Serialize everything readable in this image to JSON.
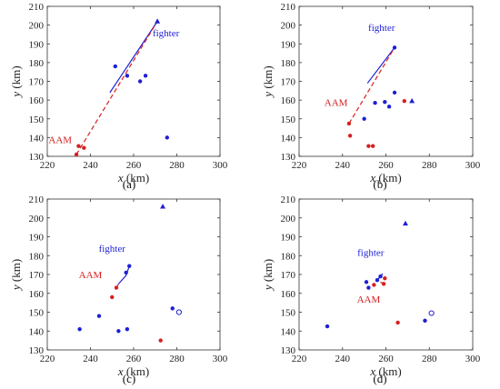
{
  "chart_data": [
    {
      "type": "scatter",
      "panel_label": "(a)",
      "xlabel": "x (km)",
      "ylabel": "y (km)",
      "xlim": [
        220,
        300
      ],
      "ylim": [
        130,
        210
      ],
      "xticks": [
        220,
        240,
        260,
        280,
        300
      ],
      "yticks": [
        130,
        140,
        150,
        160,
        170,
        180,
        190,
        200,
        210
      ],
      "grid": false,
      "annotations": [
        {
          "text": "fighter",
          "color": "#1f1fd6",
          "x": 275,
          "y": 194
        },
        {
          "text": "AAM",
          "color": "#d62020",
          "x": 226,
          "y": 137
        }
      ],
      "series": [
        {
          "kind": "blue_circles",
          "color": "#1f1fd6",
          "points": [
            [
              251.5,
              178
            ],
            [
              257,
              173
            ],
            [
              263,
              170
            ],
            [
              265.5,
              173
            ],
            [
              275.5,
              140
            ]
          ]
        },
        {
          "kind": "blue_triangles",
          "color": "#1f1fd6",
          "points": [
            [
              271,
              202
            ]
          ]
        },
        {
          "kind": "red_circles",
          "color": "#d62020",
          "points": [
            [
              233.5,
              131
            ],
            [
              237,
              134.5
            ],
            [
              234.5,
              135.5
            ]
          ]
        },
        {
          "kind": "fighter_path",
          "color": "#1f1fd6",
          "points": [
            [
              249,
              164
            ],
            [
              271,
              202
            ]
          ]
        },
        {
          "kind": "aam_path",
          "color": "#d62020",
          "points": [
            [
              233.5,
              131
            ],
            [
              271,
              202
            ]
          ]
        }
      ]
    },
    {
      "type": "scatter",
      "panel_label": "(b)",
      "xlabel": "x (km)",
      "ylabel": "y (km)",
      "xlim": [
        220,
        300
      ],
      "ylim": [
        130,
        210
      ],
      "xticks": [
        220,
        240,
        260,
        280,
        300
      ],
      "yticks": [
        130,
        140,
        150,
        160,
        170,
        180,
        190,
        200,
        210
      ],
      "grid": false,
      "annotations": [
        {
          "text": "fighter",
          "color": "#1f1fd6",
          "x": 258,
          "y": 197
        },
        {
          "text": "AAM",
          "color": "#d62020",
          "x": 237,
          "y": 157
        }
      ],
      "series": [
        {
          "kind": "blue_circles",
          "color": "#1f1fd6",
          "points": [
            [
              250,
              150
            ],
            [
              255,
              158.5
            ],
            [
              259.5,
              159
            ],
            [
              261.5,
              156.5
            ],
            [
              264,
              164
            ],
            [
              264,
              188
            ]
          ]
        },
        {
          "kind": "blue_triangles",
          "color": "#1f1fd6",
          "points": [
            [
              272,
              159.5
            ]
          ]
        },
        {
          "kind": "red_circles",
          "color": "#d62020",
          "points": [
            [
              243,
              147.5
            ],
            [
              243.5,
              141
            ],
            [
              252,
              135.5
            ],
            [
              254,
              135.5
            ],
            [
              268.5,
              159.5
            ]
          ]
        },
        {
          "kind": "fighter_path",
          "color": "#1f1fd6",
          "points": [
            [
              251.5,
              169
            ],
            [
              264,
              188
            ]
          ]
        },
        {
          "kind": "aam_path",
          "color": "#d62020",
          "points": [
            [
              243,
              147.5
            ],
            [
              264,
              188
            ]
          ]
        }
      ]
    },
    {
      "type": "scatter",
      "panel_label": "(c)",
      "xlabel": "x (km)",
      "ylabel": "y (km)",
      "xlim": [
        220,
        300
      ],
      "ylim": [
        130,
        210
      ],
      "xticks": [
        220,
        240,
        260,
        280,
        300
      ],
      "yticks": [
        130,
        140,
        150,
        160,
        170,
        180,
        190,
        200,
        210
      ],
      "grid": false,
      "annotations": [
        {
          "text": "fighter",
          "color": "#1f1fd6",
          "x": 250,
          "y": 182
        },
        {
          "text": "AAM",
          "color": "#d62020",
          "x": 240,
          "y": 168
        }
      ],
      "series": [
        {
          "kind": "blue_circles",
          "color": "#1f1fd6",
          "points": [
            [
              235,
              141
            ],
            [
              244,
              148
            ],
            [
              253,
              140
            ],
            [
              257,
              141
            ],
            [
              278,
              152
            ],
            [
              256.5,
              171
            ],
            [
              258,
              174.5
            ]
          ]
        },
        {
          "kind": "blue_triangles",
          "color": "#1f1fd6",
          "points": [
            [
              273.5,
              206
            ]
          ]
        },
        {
          "kind": "red_circles",
          "color": "#d62020",
          "points": [
            [
              250,
              158
            ],
            [
              252,
              163
            ],
            [
              272.5,
              135
            ]
          ]
        },
        {
          "kind": "open_circles",
          "color": "#1f1fd6",
          "points": [
            [
              281,
              150
            ]
          ]
        },
        {
          "kind": "fighter_path",
          "color": "#1f1fd6",
          "points": [
            [
              253,
              165
            ],
            [
              256.5,
              169.5
            ],
            [
              258,
              174.5
            ]
          ]
        },
        {
          "kind": "aam_path",
          "color": "#d62020",
          "points": [
            [
              252,
              163
            ],
            [
              253,
              165
            ]
          ]
        }
      ]
    },
    {
      "type": "scatter",
      "panel_label": "(d)",
      "xlabel": "x (km)",
      "ylabel": "y (km)",
      "xlim": [
        220,
        300
      ],
      "ylim": [
        130,
        210
      ],
      "xticks": [
        220,
        240,
        260,
        280,
        300
      ],
      "yticks": [
        130,
        140,
        150,
        160,
        170,
        180,
        190,
        200,
        210
      ],
      "grid": false,
      "annotations": [
        {
          "text": "fighter",
          "color": "#1f1fd6",
          "x": 253,
          "y": 180
        },
        {
          "text": "AAM",
          "color": "#d62020",
          "x": 252,
          "y": 155
        }
      ],
      "series": [
        {
          "kind": "blue_circles",
          "color": "#1f1fd6",
          "points": [
            [
              233,
              142.5
            ],
            [
              251,
              166
            ],
            [
              252,
              163
            ],
            [
              256,
              167
            ],
            [
              257.5,
              169
            ],
            [
              278,
              145.5
            ]
          ]
        },
        {
          "kind": "blue_triangles",
          "color": "#1f1fd6",
          "points": [
            [
              269,
              197
            ]
          ]
        },
        {
          "kind": "red_circles",
          "color": "#d62020",
          "points": [
            [
              254.5,
              164.5
            ],
            [
              259,
              165
            ],
            [
              259.5,
              168
            ],
            [
              265.5,
              144.5
            ]
          ]
        },
        {
          "kind": "open_circles",
          "color": "#1f1fd6",
          "points": [
            [
              281,
              149.5
            ]
          ]
        },
        {
          "kind": "fighter_path",
          "color": "#1f1fd6",
          "points": [
            [
              256,
              167
            ],
            [
              257.5,
              169
            ],
            [
              258.5,
              170.5
            ]
          ]
        },
        {
          "kind": "aam_path",
          "color": "#d62020",
          "points": [
            [
              257.5,
              166
            ],
            [
              259,
              165
            ]
          ]
        }
      ]
    }
  ]
}
